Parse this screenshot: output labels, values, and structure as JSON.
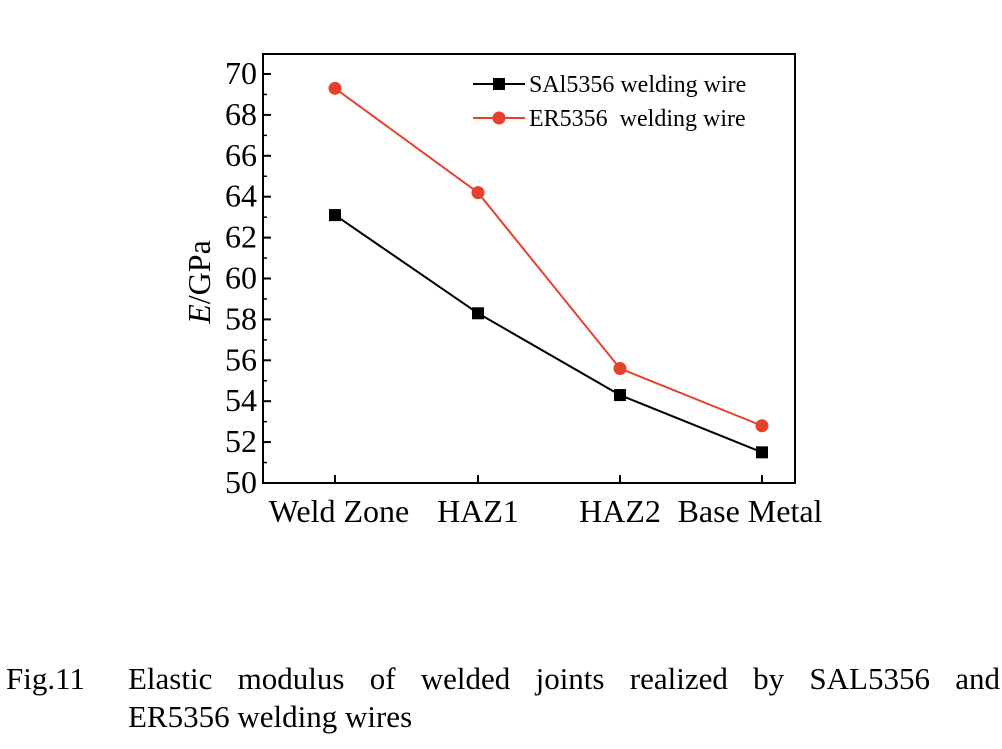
{
  "chart_data": {
    "type": "line",
    "categories": [
      "Weld Zone",
      "HAZ1",
      "HAZ2",
      "Base Metal"
    ],
    "series": [
      {
        "name": "SAl5356 welding wire",
        "values": [
          63.1,
          58.3,
          54.3,
          51.5
        ],
        "color": "#000000",
        "marker": "square"
      },
      {
        "name": "ER5356  welding wire",
        "values": [
          69.3,
          64.2,
          55.6,
          52.8
        ],
        "color": "#e8402a",
        "marker": "circle"
      }
    ],
    "ylabel_italic": "E",
    "ylabel_rest": "/GPa",
    "ylim": [
      50,
      70
    ],
    "yticks": [
      "50",
      "52",
      "54",
      "56",
      "58",
      "60",
      "62",
      "64",
      "66",
      "68",
      "70"
    ],
    "grid": false,
    "legend_position": "top-right"
  },
  "caption": {
    "number": "Fig.11",
    "line1": "Elastic modulus of welded joints realized by SAL5356 and",
    "line2": "ER5356 welding wires"
  }
}
